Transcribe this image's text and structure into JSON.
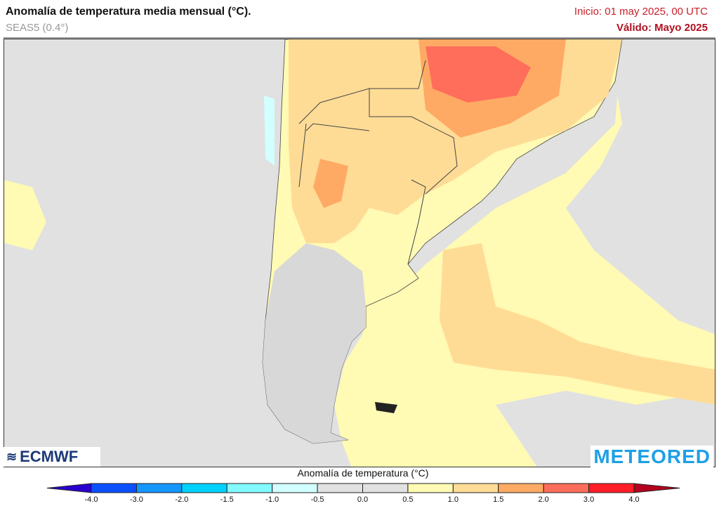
{
  "header": {
    "title": "Anomalía de temperatura media mensual (°C).",
    "model": "SEAS5 (0.4°)",
    "init": "Inicio: 01 may 2025, 00 UTC",
    "valid": "Válido: Mayo 2025"
  },
  "logos": {
    "left": "ECMWF",
    "right": "METEORED"
  },
  "colorbar": {
    "title": "Anomalía de temperatura (°C)",
    "ticks": [
      "-4.0",
      "-3.0",
      "-2.0",
      "-1.5",
      "-1.0",
      "-0.5",
      "0.0",
      "0.5",
      "1.0",
      "1.5",
      "2.0",
      "3.0",
      "4.0"
    ],
    "under_color": "#2a00d0",
    "over_color": "#b4001e",
    "colors": [
      "#0a50ff",
      "#1496ff",
      "#00d2ff",
      "#82faff",
      "#d2ffff",
      "#e1e1e1",
      "#e1e1e1",
      "#fffab4",
      "#ffdc96",
      "#ffaa64",
      "#ff6e5a",
      "#ff1e28"
    ]
  }
}
